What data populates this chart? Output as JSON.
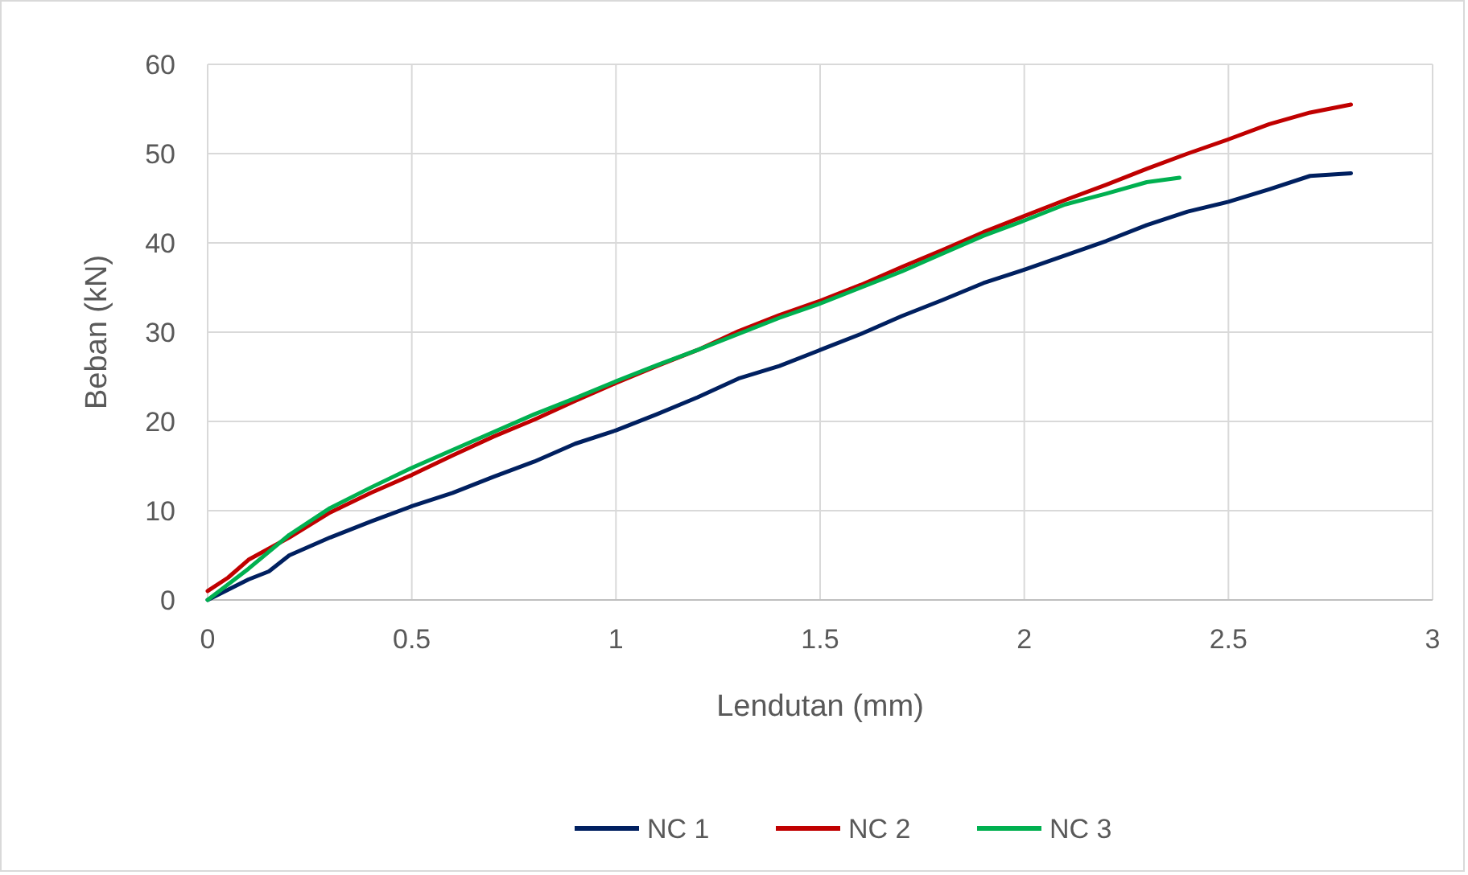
{
  "chart_data": {
    "type": "line",
    "xlabel": "Lendutan (mm)",
    "ylabel": "Beban (kN)",
    "xlim": [
      0,
      3
    ],
    "ylim": [
      0,
      60
    ],
    "xticks": [
      0,
      0.5,
      1,
      1.5,
      2,
      2.5,
      3
    ],
    "yticks": [
      0,
      10,
      20,
      30,
      40,
      50,
      60
    ],
    "grid": true,
    "legend": "bottom",
    "marker": "none",
    "line_style": "solid",
    "series": [
      {
        "name": "NC 1",
        "color": "#002060",
        "x": [
          0,
          0.1,
          0.15,
          0.2,
          0.3,
          0.4,
          0.5,
          0.6,
          0.7,
          0.8,
          0.9,
          1.0,
          1.1,
          1.2,
          1.3,
          1.4,
          1.5,
          1.6,
          1.7,
          1.8,
          1.9,
          2.0,
          2.1,
          2.2,
          2.3,
          2.4,
          2.5,
          2.6,
          2.7,
          2.8
        ],
        "values": [
          0,
          2.3,
          3.2,
          5,
          7,
          8.8,
          10.5,
          12,
          13.8,
          15.5,
          17.5,
          19,
          20.8,
          22.7,
          24.8,
          26.2,
          28,
          29.8,
          31.8,
          33.6,
          35.5,
          37,
          38.6,
          40.2,
          42,
          43.5,
          44.6,
          46,
          47.5,
          47.8
        ]
      },
      {
        "name": "NC 2",
        "color": "#c00000",
        "x": [
          0,
          0.05,
          0.1,
          0.2,
          0.3,
          0.4,
          0.5,
          0.6,
          0.7,
          0.8,
          0.9,
          1.0,
          1.1,
          1.2,
          1.3,
          1.4,
          1.5,
          1.6,
          1.7,
          1.8,
          1.9,
          2.0,
          2.1,
          2.2,
          2.3,
          2.4,
          2.5,
          2.6,
          2.7,
          2.8
        ],
        "values": [
          1,
          2.5,
          4.5,
          7,
          9.8,
          12,
          14,
          16.2,
          18.3,
          20.2,
          22.3,
          24.3,
          26.2,
          28,
          30.1,
          31.9,
          33.5,
          35.3,
          37.3,
          39.2,
          41.2,
          43,
          44.8,
          46.5,
          48.3,
          50,
          51.6,
          53.3,
          54.6,
          55.5
        ]
      },
      {
        "name": "NC 3",
        "color": "#00b050",
        "x": [
          0,
          0.1,
          0.2,
          0.3,
          0.4,
          0.5,
          0.6,
          0.7,
          0.8,
          0.9,
          1.0,
          1.1,
          1.2,
          1.3,
          1.4,
          1.5,
          1.6,
          1.7,
          1.8,
          1.9,
          2.0,
          2.1,
          2.2,
          2.3,
          2.38
        ],
        "values": [
          0,
          3.5,
          7.3,
          10.3,
          12.6,
          14.8,
          16.8,
          18.8,
          20.8,
          22.6,
          24.5,
          26.3,
          28,
          29.8,
          31.6,
          33.2,
          35,
          36.8,
          38.8,
          40.8,
          42.5,
          44.3,
          45.5,
          46.8,
          47.3
        ]
      }
    ]
  }
}
